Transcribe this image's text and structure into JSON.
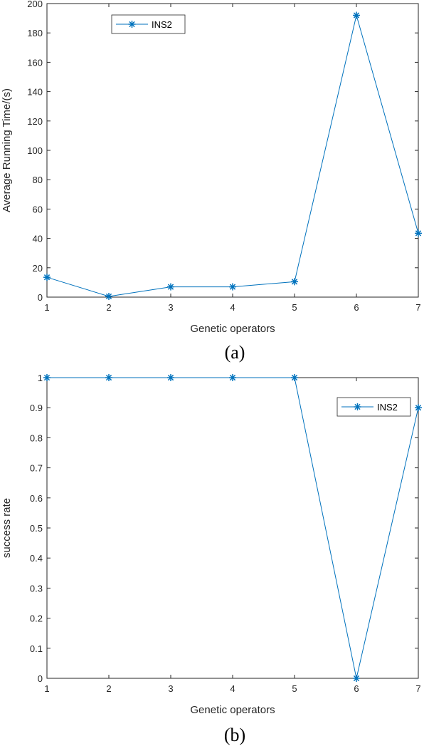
{
  "chart_data": [
    {
      "type": "line",
      "caption": "(a)",
      "xlabel": "Genetic operators",
      "ylabel": "Average Running Time/(s)",
      "x": [
        1,
        2,
        3,
        4,
        5,
        6,
        7
      ],
      "xticks": [
        "1",
        "2",
        "3",
        "4",
        "5",
        "6",
        "7"
      ],
      "yticks": [
        "0",
        "20",
        "40",
        "60",
        "80",
        "100",
        "120",
        "140",
        "160",
        "180",
        "200"
      ],
      "xlim": [
        1,
        7
      ],
      "ylim": [
        0,
        200
      ],
      "legend_position": "top-left",
      "grid": false,
      "series": [
        {
          "name": "INS2",
          "values": [
            13.5,
            0.5,
            7,
            7,
            10.5,
            192,
            43.5
          ],
          "color": "#0072BD",
          "marker": "asterisk"
        }
      ]
    },
    {
      "type": "line",
      "caption": "(b)",
      "xlabel": "Genetic operators",
      "ylabel": "success rate",
      "x": [
        1,
        2,
        3,
        4,
        5,
        6,
        7
      ],
      "xticks": [
        "1",
        "2",
        "3",
        "4",
        "5",
        "6",
        "7"
      ],
      "yticks": [
        "0",
        "0.1",
        "0.2",
        "0.3",
        "0.4",
        "0.5",
        "0.6",
        "0.7",
        "0.8",
        "0.9",
        "1"
      ],
      "xlim": [
        1,
        7
      ],
      "ylim": [
        0,
        1
      ],
      "legend_position": "top-right",
      "grid": false,
      "series": [
        {
          "name": "INS2",
          "values": [
            1,
            1,
            1,
            1,
            1,
            0,
            0.9
          ],
          "color": "#0072BD",
          "marker": "asterisk"
        }
      ]
    }
  ]
}
